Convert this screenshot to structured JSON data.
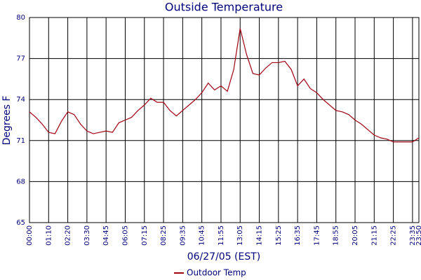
{
  "chart_data": {
    "type": "line",
    "title": "Outside Temperature",
    "x_label": "06/27/05 (EST)",
    "y_label": "Degrees F",
    "categories": [
      "00:00",
      null,
      null,
      "01:10",
      null,
      null,
      "02:20",
      null,
      null,
      "03:30",
      null,
      null,
      "04:45",
      null,
      null,
      "06:05",
      null,
      null,
      "07:15",
      null,
      null,
      "08:25",
      null,
      null,
      "09:35",
      null,
      null,
      "10:45",
      null,
      null,
      "11:55",
      null,
      null,
      "13:05",
      null,
      null,
      "14:15",
      null,
      null,
      "15:25",
      null,
      null,
      "16:35",
      null,
      null,
      "17:45",
      null,
      null,
      "18:55",
      null,
      null,
      "20:05",
      null,
      null,
      "21:15",
      null,
      null,
      "22:25",
      null,
      null,
      "23:35",
      "23:50"
    ],
    "series": [
      {
        "name": "Outdoor Temp",
        "color": "#a00010",
        "values": [
          73.1,
          72.7,
          72.2,
          71.6,
          71.5,
          72.4,
          73.1,
          72.9,
          72.2,
          71.7,
          71.5,
          71.6,
          71.7,
          71.6,
          72.3,
          72.5,
          72.7,
          73.2,
          73.6,
          74.1,
          73.8,
          73.8,
          73.2,
          72.8,
          73.2,
          73.6,
          74.0,
          74.5,
          75.2,
          74.7,
          75.0,
          74.6,
          76.2,
          79.2,
          77.3,
          75.9,
          75.8,
          76.3,
          76.7,
          76.7,
          76.8,
          76.2,
          75.0,
          75.5,
          74.8,
          74.5,
          74.0,
          73.6,
          73.2,
          73.1,
          72.9,
          72.5,
          72.2,
          71.8,
          71.4,
          71.2,
          71.1,
          70.9,
          70.9,
          70.9,
          70.9,
          71.2
        ]
      }
    ],
    "ylim": [
      65,
      80
    ],
    "yticks": [
      65,
      68,
      71,
      74,
      77,
      80
    ],
    "grid": true
  }
}
